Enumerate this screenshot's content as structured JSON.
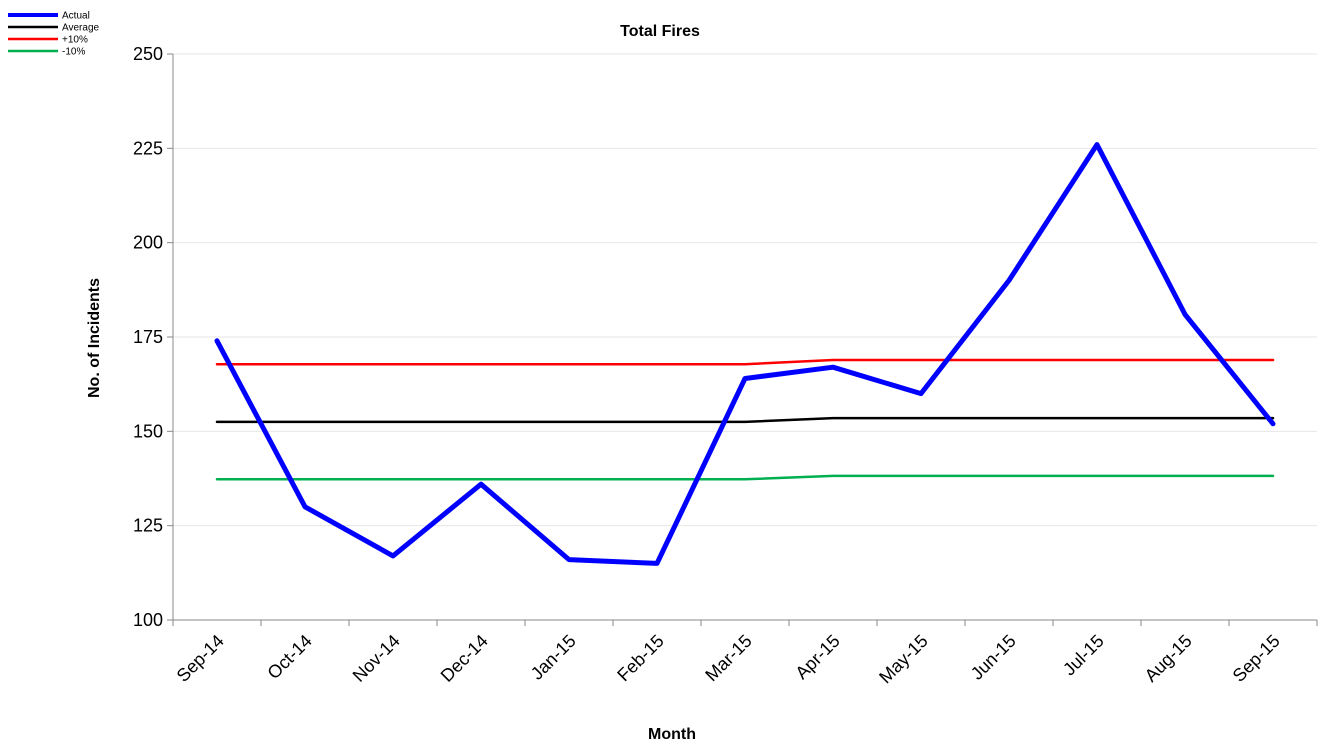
{
  "chart_data": {
    "type": "line",
    "title": "Total Fires",
    "xlabel": "Month",
    "ylabel": "No. of Incidents",
    "categories": [
      "Sep-14",
      "Oct-14",
      "Nov-14",
      "Dec-14",
      "Jan-15",
      "Feb-15",
      "Mar-15",
      "Apr-15",
      "May-15",
      "Jun-15",
      "Jul-15",
      "Aug-15",
      "Sep-15"
    ],
    "ylim": [
      100,
      250
    ],
    "yticks": [
      100,
      125,
      150,
      175,
      200,
      225,
      250
    ],
    "grid": true,
    "legend_position": "top-left",
    "series": [
      {
        "name": "Actual",
        "color": "#0000ff",
        "values": [
          174,
          130,
          117,
          136,
          116,
          115,
          164,
          167,
          160,
          190,
          226,
          181,
          152
        ]
      },
      {
        "name": "Average",
        "color": "#000000",
        "values": [
          152.5,
          152.5,
          152.5,
          152.5,
          152.5,
          152.5,
          152.5,
          153.5,
          153.5,
          153.5,
          153.5,
          153.5,
          153.5
        ]
      },
      {
        "name": "+10%",
        "color": "#ff0000",
        "values": [
          167.8,
          167.8,
          167.8,
          167.8,
          167.8,
          167.8,
          167.8,
          168.9,
          168.9,
          168.9,
          168.9,
          168.9,
          168.9
        ]
      },
      {
        "name": "-10%",
        "color": "#00b050",
        "values": [
          137.3,
          137.3,
          137.3,
          137.3,
          137.3,
          137.3,
          137.3,
          138.2,
          138.2,
          138.2,
          138.2,
          138.2,
          138.2
        ]
      }
    ]
  }
}
